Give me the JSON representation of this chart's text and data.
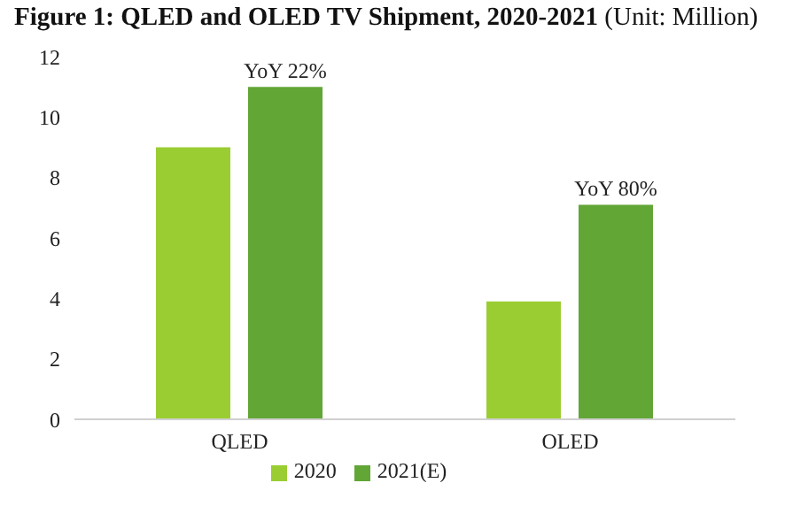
{
  "chart_data": {
    "type": "bar",
    "title": "Figure 1: QLED and OLED TV Shipment, 2020-2021",
    "subtitle": "(Unit: Million)",
    "categories": [
      "QLED",
      "OLED"
    ],
    "series": [
      {
        "name": "2020",
        "color": "#9acd32",
        "values": [
          9.0,
          3.9
        ]
      },
      {
        "name": "2021(E)",
        "color": "#62a636",
        "values": [
          11.0,
          7.1
        ]
      }
    ],
    "ylim": [
      0,
      12
    ],
    "yticks": [
      0,
      2,
      4,
      6,
      8,
      10,
      12
    ],
    "grid": false,
    "legend": "bottom",
    "annotations": [
      {
        "text": "YoY 22%",
        "x": "QLED",
        "y": 11.0
      },
      {
        "text": "YoY 80%",
        "x": "OLED",
        "y": 7.1
      }
    ]
  }
}
